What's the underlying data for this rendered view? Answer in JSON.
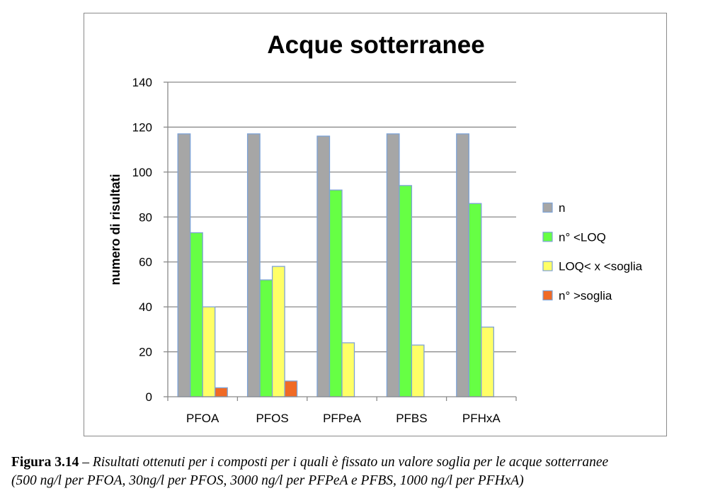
{
  "chart_data": {
    "type": "bar",
    "title": "Acque sotterranee",
    "ylabel": "numero di risultati",
    "xlabel": "",
    "ylim": [
      0,
      140
    ],
    "yticks": [
      0,
      20,
      40,
      60,
      80,
      100,
      120,
      140
    ],
    "grid": true,
    "legend_position": "right",
    "categories": [
      "PFOA",
      "PFOS",
      "PFPeA",
      "PFBS",
      "PFHxA"
    ],
    "series": [
      {
        "name": "n",
        "color": "#a6a6a6",
        "values": [
          117,
          117,
          116,
          117,
          117
        ]
      },
      {
        "name": "n° <LOQ",
        "color": "#66ff44",
        "values": [
          73,
          52,
          92,
          94,
          86
        ]
      },
      {
        "name": "LOQ< x <soglia",
        "color": "#ffff66",
        "values": [
          40,
          58,
          24,
          23,
          31
        ]
      },
      {
        "name": "n° >soglia",
        "color": "#f06a25",
        "values": [
          4,
          7,
          0,
          0,
          0
        ]
      }
    ],
    "bar_outline_color": "#7da2d6"
  },
  "caption": {
    "label": "Figura 3.14",
    "dash": " – ",
    "line1": "Risultati ottenuti per i composti per i quali è fissato un valore soglia per le acque sotterranee",
    "line2": "(500 ng/l per PFOA, 30ng/l per PFOS, 3000 ng/l per PFPeA e PFBS, 1000 ng/l per PFHxA)"
  }
}
